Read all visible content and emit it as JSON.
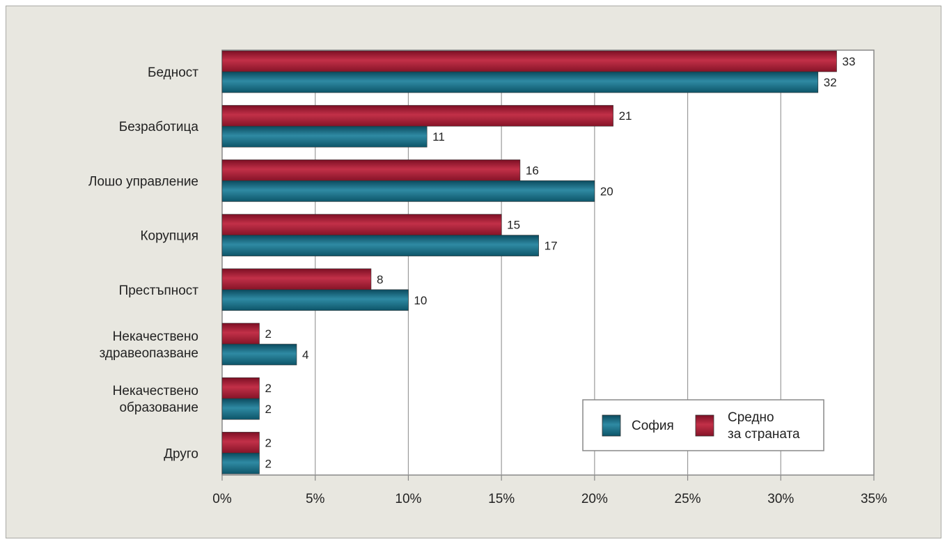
{
  "chart_data": {
    "type": "bar",
    "orientation": "horizontal",
    "categories": [
      [
        "Бедност"
      ],
      [
        "Безработица"
      ],
      [
        "Лошо управление"
      ],
      [
        "Корупция"
      ],
      [
        "Престъпност"
      ],
      [
        "Некачествено",
        "здравеопазване"
      ],
      [
        "Некачествено",
        "образование"
      ],
      [
        "Друго"
      ]
    ],
    "series": [
      {
        "name": "Средно за страната",
        "name_lines": [
          "Средно",
          "за страната"
        ],
        "color": "#a81c36",
        "values": [
          33,
          21,
          16,
          15,
          8,
          2,
          2,
          2
        ]
      },
      {
        "name": "София",
        "name_lines": [
          "София"
        ],
        "color": "#1e6e86",
        "values": [
          32,
          11,
          20,
          17,
          10,
          4,
          2,
          2
        ]
      }
    ],
    "xlim": [
      0,
      35
    ],
    "xticks": [
      0,
      5,
      10,
      15,
      20,
      25,
      30,
      35
    ],
    "tick_suffix": "%",
    "grid": true,
    "legend_position": "bottom-right",
    "legend_order": [
      1,
      0
    ]
  }
}
